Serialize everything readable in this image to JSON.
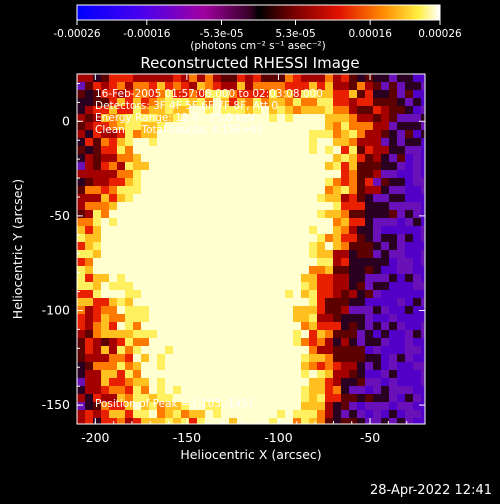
{
  "colorbar": {
    "tick_labels": [
      "-0.00026",
      "-0.00016",
      "-5.3e-05",
      "5.3e-05",
      "0.00016",
      "0.00026"
    ],
    "tick_values": [
      -0.00026,
      -0.00016,
      -5.3e-05,
      5.3e-05,
      0.00016,
      0.00026
    ],
    "range": [
      -0.00026,
      0.00026
    ],
    "unit_label": "(photons cm⁻² s⁻¹ asec⁻²)"
  },
  "plot": {
    "title": "Reconstructed RHESSI Image",
    "xlabel": "Heliocentric X (arcsec)",
    "ylabel": "Heliocentric Y (arcsec)",
    "xlim": [
      -210,
      -20
    ],
    "ylim": [
      -160,
      25
    ],
    "xticks": [
      -200,
      -150,
      -100,
      -50
    ],
    "yticks": [
      0,
      -50,
      -100,
      -150
    ]
  },
  "info": {
    "time_range": "16-Feb-2005 01:57:08.000 to 02:03:08.000",
    "detectors": "Detectors: 3F 4F 5F 6F 7F 8F, Att 0",
    "energy": "Energy Range: 12.0 - 25.0 keV",
    "method": "Clean     Total counts: 4.15E+03",
    "peak": "Position of Peak = [-103,-145]"
  },
  "timestamp": "28-Apr-2022 12:41",
  "image_features": [
    {
      "x": -135,
      "y": -10,
      "amp": 1.0
    },
    {
      "x": -160,
      "y": -55,
      "amp": 0.9
    },
    {
      "x": -195,
      "y": -75,
      "amp": 1.0
    },
    {
      "x": -140,
      "y": -65,
      "amp": 0.9
    },
    {
      "x": -110,
      "y": -50,
      "amp": 0.8
    },
    {
      "x": -88,
      "y": -70,
      "amp": 0.7
    },
    {
      "x": -70,
      "y": 5,
      "amp": 0.8
    },
    {
      "x": -115,
      "y": -120,
      "amp": 0.8
    },
    {
      "x": -145,
      "y": -110,
      "amp": 0.7
    },
    {
      "x": -175,
      "y": -150,
      "amp": 1.0
    },
    {
      "x": -103,
      "y": -145,
      "amp": 1.3
    },
    {
      "x": -180,
      "y": 10,
      "amp": 0.8
    },
    {
      "x": -95,
      "y": -25,
      "amp": 0.7
    }
  ]
}
